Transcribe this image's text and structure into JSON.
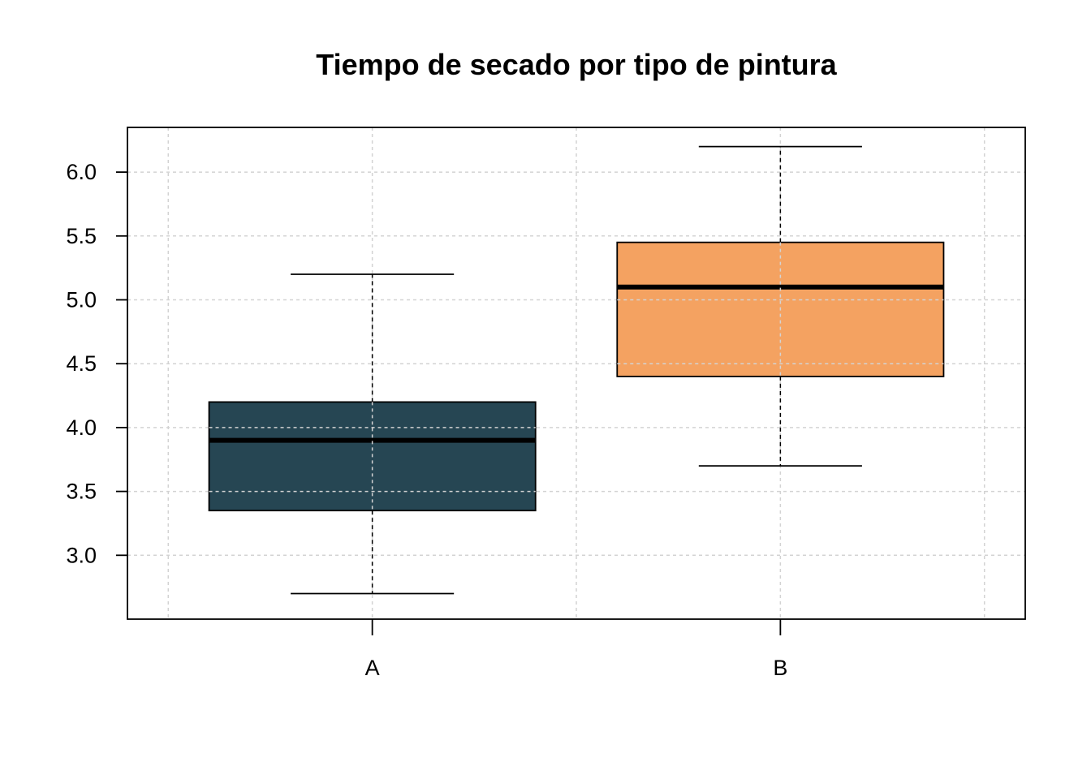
{
  "chart_data": {
    "type": "box",
    "title": "Tiempo de secado por tipo de pintura",
    "xlabel": "",
    "ylabel": "",
    "categories": [
      "A",
      "B"
    ],
    "boxes": [
      {
        "category": "A",
        "min": 2.7,
        "q1": 3.35,
        "median": 3.9,
        "q3": 4.2,
        "max": 5.2,
        "color": "#264653"
      },
      {
        "category": "B",
        "min": 3.7,
        "q1": 4.4,
        "median": 5.1,
        "q3": 5.45,
        "max": 6.2,
        "color": "#F4A261"
      }
    ],
    "ylim": [
      2.5,
      6.35
    ],
    "yticks": [
      "3.0",
      "3.5",
      "4.0",
      "4.5",
      "5.0",
      "5.5",
      "6.0"
    ],
    "grid": true
  }
}
